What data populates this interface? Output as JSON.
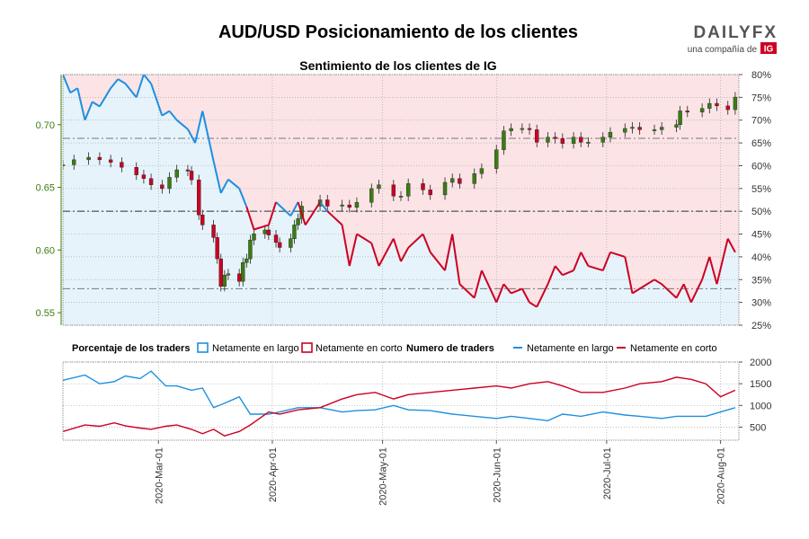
{
  "header": {
    "title": "AUD/USD Posicionamiento de los clientes",
    "logo_text": "DAILYFX",
    "logo_sub": "una compañía de",
    "logo_brand": "IG"
  },
  "colors": {
    "long": "#1e8fe0",
    "short": "#cc0022",
    "long_fill": "#e6f3fb",
    "short_fill": "#fbe3e6",
    "price_axis": "#3a7d12",
    "candle_up": "#3a7d12",
    "candle_down": "#cc0022"
  },
  "legend": {
    "pct_title": "Porcentaje de los traders",
    "pct_long": "Netamente en largo",
    "pct_short": "Netamente en corto",
    "num_title": "Numero de traders",
    "num_long": "Netamente en largo",
    "num_short": "Netamente en corto"
  },
  "chart_data": [
    {
      "type": "line",
      "title": "Sentimiento de los clientes de IG",
      "series_kind": "candlestick price with net-long percentage overlay",
      "price_axis": {
        "ticks": [
          "0.70",
          "0.65",
          "0.60",
          "0.55"
        ],
        "ylim": [
          0.54,
          0.74
        ]
      },
      "pct_axis": {
        "ticks": [
          "80%",
          "75%",
          "70%",
          "65%",
          "60%",
          "55%",
          "50%",
          "45%",
          "40%",
          "35%",
          "30%",
          "25%"
        ],
        "ylim": [
          25,
          80
        ]
      },
      "reference_lines_pct": [
        50,
        66,
        33
      ],
      "reference_line_price": 0.631,
      "x_ticks": [
        "2020-Mar-01",
        "2020-Apr-01",
        "2020-May-01",
        "2020-Jun-01",
        "2020-Jul-01",
        "2020-Aug-01"
      ],
      "x_range": [
        "2020-02-04",
        "2020-08-06"
      ],
      "price": [
        {
          "x": "2020-02-04",
          "y": 0.668
        },
        {
          "x": "2020-02-07",
          "y": 0.672
        },
        {
          "x": "2020-02-11",
          "y": 0.674
        },
        {
          "x": "2020-02-14",
          "y": 0.672
        },
        {
          "x": "2020-02-17",
          "y": 0.67
        },
        {
          "x": "2020-02-20",
          "y": 0.666
        },
        {
          "x": "2020-02-24",
          "y": 0.66
        },
        {
          "x": "2020-02-26",
          "y": 0.657
        },
        {
          "x": "2020-02-28",
          "y": 0.652
        },
        {
          "x": "2020-03-02",
          "y": 0.649
        },
        {
          "x": "2020-03-04",
          "y": 0.658
        },
        {
          "x": "2020-03-06",
          "y": 0.664
        },
        {
          "x": "2020-03-09",
          "y": 0.663
        },
        {
          "x": "2020-03-10",
          "y": 0.656
        },
        {
          "x": "2020-03-12",
          "y": 0.628
        },
        {
          "x": "2020-03-13",
          "y": 0.62
        },
        {
          "x": "2020-03-16",
          "y": 0.61
        },
        {
          "x": "2020-03-17",
          "y": 0.593
        },
        {
          "x": "2020-03-18",
          "y": 0.571
        },
        {
          "x": "2020-03-19",
          "y": 0.58
        },
        {
          "x": "2020-03-20",
          "y": 0.581
        },
        {
          "x": "2020-03-23",
          "y": 0.575
        },
        {
          "x": "2020-03-24",
          "y": 0.59
        },
        {
          "x": "2020-03-25",
          "y": 0.593
        },
        {
          "x": "2020-03-26",
          "y": 0.608
        },
        {
          "x": "2020-03-27",
          "y": 0.613
        },
        {
          "x": "2020-03-30",
          "y": 0.616
        },
        {
          "x": "2020-03-31",
          "y": 0.612
        },
        {
          "x": "2020-04-02",
          "y": 0.606
        },
        {
          "x": "2020-04-03",
          "y": 0.602
        },
        {
          "x": "2020-04-06",
          "y": 0.609
        },
        {
          "x": "2020-04-07",
          "y": 0.62
        },
        {
          "x": "2020-04-08",
          "y": 0.625
        },
        {
          "x": "2020-04-09",
          "y": 0.635
        },
        {
          "x": "2020-04-14",
          "y": 0.64
        },
        {
          "x": "2020-04-16",
          "y": 0.635
        },
        {
          "x": "2020-04-20",
          "y": 0.636
        },
        {
          "x": "2020-04-22",
          "y": 0.634
        },
        {
          "x": "2020-04-24",
          "y": 0.638
        },
        {
          "x": "2020-04-28",
          "y": 0.649
        },
        {
          "x": "2020-04-30",
          "y": 0.652
        },
        {
          "x": "2020-05-04",
          "y": 0.643
        },
        {
          "x": "2020-05-06",
          "y": 0.643
        },
        {
          "x": "2020-05-08",
          "y": 0.653
        },
        {
          "x": "2020-05-12",
          "y": 0.648
        },
        {
          "x": "2020-05-14",
          "y": 0.644
        },
        {
          "x": "2020-05-18",
          "y": 0.654
        },
        {
          "x": "2020-05-20",
          "y": 0.657
        },
        {
          "x": "2020-05-22",
          "y": 0.653
        },
        {
          "x": "2020-05-26",
          "y": 0.661
        },
        {
          "x": "2020-05-28",
          "y": 0.665
        },
        {
          "x": "2020-06-01",
          "y": 0.68
        },
        {
          "x": "2020-06-03",
          "y": 0.695
        },
        {
          "x": "2020-06-05",
          "y": 0.697
        },
        {
          "x": "2020-06-08",
          "y": 0.697
        },
        {
          "x": "2020-06-10",
          "y": 0.696
        },
        {
          "x": "2020-06-12",
          "y": 0.686
        },
        {
          "x": "2020-06-15",
          "y": 0.69
        },
        {
          "x": "2020-06-17",
          "y": 0.689
        },
        {
          "x": "2020-06-19",
          "y": 0.685
        },
        {
          "x": "2020-06-22",
          "y": 0.69
        },
        {
          "x": "2020-06-24",
          "y": 0.686
        },
        {
          "x": "2020-06-26",
          "y": 0.686
        },
        {
          "x": "2020-06-30",
          "y": 0.69
        },
        {
          "x": "2020-07-02",
          "y": 0.694
        },
        {
          "x": "2020-07-06",
          "y": 0.697
        },
        {
          "x": "2020-07-08",
          "y": 0.698
        },
        {
          "x": "2020-07-10",
          "y": 0.696
        },
        {
          "x": "2020-07-14",
          "y": 0.696
        },
        {
          "x": "2020-07-16",
          "y": 0.698
        },
        {
          "x": "2020-07-20",
          "y": 0.7
        },
        {
          "x": "2020-07-21",
          "y": 0.711
        },
        {
          "x": "2020-07-23",
          "y": 0.71
        },
        {
          "x": "2020-07-27",
          "y": 0.713
        },
        {
          "x": "2020-07-29",
          "y": 0.717
        },
        {
          "x": "2020-07-31",
          "y": 0.715
        },
        {
          "x": "2020-08-03",
          "y": 0.712
        },
        {
          "x": "2020-08-05",
          "y": 0.722
        }
      ],
      "net_long_pct": [
        {
          "x": "2020-02-04",
          "y": 80
        },
        {
          "x": "2020-02-06",
          "y": 76
        },
        {
          "x": "2020-02-08",
          "y": 77
        },
        {
          "x": "2020-02-10",
          "y": 70
        },
        {
          "x": "2020-02-12",
          "y": 74
        },
        {
          "x": "2020-02-14",
          "y": 73
        },
        {
          "x": "2020-02-17",
          "y": 77
        },
        {
          "x": "2020-02-19",
          "y": 79
        },
        {
          "x": "2020-02-21",
          "y": 78
        },
        {
          "x": "2020-02-24",
          "y": 75
        },
        {
          "x": "2020-02-26",
          "y": 80
        },
        {
          "x": "2020-02-28",
          "y": 78
        },
        {
          "x": "2020-03-02",
          "y": 71
        },
        {
          "x": "2020-03-04",
          "y": 72
        },
        {
          "x": "2020-03-06",
          "y": 70
        },
        {
          "x": "2020-03-09",
          "y": 68
        },
        {
          "x": "2020-03-11",
          "y": 65
        },
        {
          "x": "2020-03-13",
          "y": 72
        },
        {
          "x": "2020-03-16",
          "y": 61
        },
        {
          "x": "2020-03-18",
          "y": 54
        },
        {
          "x": "2020-03-20",
          "y": 57
        },
        {
          "x": "2020-03-23",
          "y": 55
        },
        {
          "x": "2020-03-25",
          "y": 51
        },
        {
          "x": "2020-03-27",
          "y": 46
        },
        {
          "x": "2020-03-31",
          "y": 47
        },
        {
          "x": "2020-04-02",
          "y": 52
        },
        {
          "x": "2020-04-06",
          "y": 49
        },
        {
          "x": "2020-04-08",
          "y": 52
        },
        {
          "x": "2020-04-10",
          "y": 47
        },
        {
          "x": "2020-04-14",
          "y": 52
        },
        {
          "x": "2020-04-16",
          "y": 50
        },
        {
          "x": "2020-04-20",
          "y": 47
        },
        {
          "x": "2020-04-22",
          "y": 38
        },
        {
          "x": "2020-04-24",
          "y": 45
        },
        {
          "x": "2020-04-28",
          "y": 43
        },
        {
          "x": "2020-04-30",
          "y": 38
        },
        {
          "x": "2020-05-04",
          "y": 44
        },
        {
          "x": "2020-05-06",
          "y": 39
        },
        {
          "x": "2020-05-08",
          "y": 42
        },
        {
          "x": "2020-05-12",
          "y": 45
        },
        {
          "x": "2020-05-14",
          "y": 41
        },
        {
          "x": "2020-05-18",
          "y": 37
        },
        {
          "x": "2020-05-20",
          "y": 45
        },
        {
          "x": "2020-05-22",
          "y": 34
        },
        {
          "x": "2020-05-26",
          "y": 31
        },
        {
          "x": "2020-05-28",
          "y": 37
        },
        {
          "x": "2020-06-01",
          "y": 30
        },
        {
          "x": "2020-06-03",
          "y": 34
        },
        {
          "x": "2020-06-05",
          "y": 32
        },
        {
          "x": "2020-06-08",
          "y": 33
        },
        {
          "x": "2020-06-10",
          "y": 30
        },
        {
          "x": "2020-06-12",
          "y": 29
        },
        {
          "x": "2020-06-15",
          "y": 34
        },
        {
          "x": "2020-06-17",
          "y": 38
        },
        {
          "x": "2020-06-19",
          "y": 36
        },
        {
          "x": "2020-06-22",
          "y": 37
        },
        {
          "x": "2020-06-24",
          "y": 41
        },
        {
          "x": "2020-06-26",
          "y": 38
        },
        {
          "x": "2020-06-30",
          "y": 37
        },
        {
          "x": "2020-07-02",
          "y": 41
        },
        {
          "x": "2020-07-06",
          "y": 40
        },
        {
          "x": "2020-07-08",
          "y": 32
        },
        {
          "x": "2020-07-10",
          "y": 33
        },
        {
          "x": "2020-07-14",
          "y": 35
        },
        {
          "x": "2020-07-16",
          "y": 34
        },
        {
          "x": "2020-07-20",
          "y": 31
        },
        {
          "x": "2020-07-22",
          "y": 34
        },
        {
          "x": "2020-07-24",
          "y": 30
        },
        {
          "x": "2020-07-27",
          "y": 35
        },
        {
          "x": "2020-07-29",
          "y": 40
        },
        {
          "x": "2020-07-31",
          "y": 34
        },
        {
          "x": "2020-08-03",
          "y": 44
        },
        {
          "x": "2020-08-05",
          "y": 41
        }
      ]
    },
    {
      "type": "line",
      "series_kind": "number of traders",
      "y_ticks": [
        "2000",
        "1500",
        "1000",
        "500"
      ],
      "ylim": [
        200,
        2000
      ],
      "series": [
        {
          "name": "Netamente en largo",
          "color": "#1e8fe0",
          "points": [
            {
              "x": "2020-02-04",
              "y": 1580
            },
            {
              "x": "2020-02-10",
              "y": 1700
            },
            {
              "x": "2020-02-14",
              "y": 1500
            },
            {
              "x": "2020-02-18",
              "y": 1550
            },
            {
              "x": "2020-02-21",
              "y": 1680
            },
            {
              "x": "2020-02-25",
              "y": 1620
            },
            {
              "x": "2020-02-28",
              "y": 1790
            },
            {
              "x": "2020-03-03",
              "y": 1450
            },
            {
              "x": "2020-03-06",
              "y": 1450
            },
            {
              "x": "2020-03-10",
              "y": 1350
            },
            {
              "x": "2020-03-13",
              "y": 1400
            },
            {
              "x": "2020-03-16",
              "y": 950
            },
            {
              "x": "2020-03-19",
              "y": 1050
            },
            {
              "x": "2020-03-23",
              "y": 1200
            },
            {
              "x": "2020-03-26",
              "y": 800
            },
            {
              "x": "2020-03-31",
              "y": 800
            },
            {
              "x": "2020-04-03",
              "y": 850
            },
            {
              "x": "2020-04-08",
              "y": 950
            },
            {
              "x": "2020-04-14",
              "y": 950
            },
            {
              "x": "2020-04-20",
              "y": 850
            },
            {
              "x": "2020-04-24",
              "y": 880
            },
            {
              "x": "2020-04-29",
              "y": 900
            },
            {
              "x": "2020-05-04",
              "y": 1000
            },
            {
              "x": "2020-05-08",
              "y": 900
            },
            {
              "x": "2020-05-14",
              "y": 880
            },
            {
              "x": "2020-05-20",
              "y": 800
            },
            {
              "x": "2020-05-26",
              "y": 750
            },
            {
              "x": "2020-06-01",
              "y": 700
            },
            {
              "x": "2020-06-05",
              "y": 750
            },
            {
              "x": "2020-06-10",
              "y": 700
            },
            {
              "x": "2020-06-15",
              "y": 650
            },
            {
              "x": "2020-06-19",
              "y": 800
            },
            {
              "x": "2020-06-24",
              "y": 750
            },
            {
              "x": "2020-06-30",
              "y": 850
            },
            {
              "x": "2020-07-06",
              "y": 780
            },
            {
              "x": "2020-07-10",
              "y": 750
            },
            {
              "x": "2020-07-16",
              "y": 700
            },
            {
              "x": "2020-07-20",
              "y": 750
            },
            {
              "x": "2020-07-24",
              "y": 750
            },
            {
              "x": "2020-07-28",
              "y": 750
            },
            {
              "x": "2020-08-01",
              "y": 850
            },
            {
              "x": "2020-08-05",
              "y": 950
            }
          ]
        },
        {
          "name": "Netamente en corto",
          "color": "#cc0022",
          "points": [
            {
              "x": "2020-02-04",
              "y": 400
            },
            {
              "x": "2020-02-10",
              "y": 550
            },
            {
              "x": "2020-02-14",
              "y": 520
            },
            {
              "x": "2020-02-18",
              "y": 600
            },
            {
              "x": "2020-02-21",
              "y": 530
            },
            {
              "x": "2020-02-25",
              "y": 480
            },
            {
              "x": "2020-02-28",
              "y": 450
            },
            {
              "x": "2020-03-03",
              "y": 520
            },
            {
              "x": "2020-03-06",
              "y": 550
            },
            {
              "x": "2020-03-10",
              "y": 450
            },
            {
              "x": "2020-03-13",
              "y": 350
            },
            {
              "x": "2020-03-16",
              "y": 450
            },
            {
              "x": "2020-03-19",
              "y": 300
            },
            {
              "x": "2020-03-23",
              "y": 400
            },
            {
              "x": "2020-03-26",
              "y": 550
            },
            {
              "x": "2020-03-31",
              "y": 850
            },
            {
              "x": "2020-04-03",
              "y": 800
            },
            {
              "x": "2020-04-08",
              "y": 900
            },
            {
              "x": "2020-04-14",
              "y": 950
            },
            {
              "x": "2020-04-20",
              "y": 1150
            },
            {
              "x": "2020-04-24",
              "y": 1250
            },
            {
              "x": "2020-04-29",
              "y": 1300
            },
            {
              "x": "2020-05-04",
              "y": 1150
            },
            {
              "x": "2020-05-08",
              "y": 1250
            },
            {
              "x": "2020-05-14",
              "y": 1300
            },
            {
              "x": "2020-05-20",
              "y": 1350
            },
            {
              "x": "2020-05-26",
              "y": 1400
            },
            {
              "x": "2020-06-01",
              "y": 1450
            },
            {
              "x": "2020-06-05",
              "y": 1400
            },
            {
              "x": "2020-06-10",
              "y": 1500
            },
            {
              "x": "2020-06-15",
              "y": 1550
            },
            {
              "x": "2020-06-19",
              "y": 1450
            },
            {
              "x": "2020-06-24",
              "y": 1300
            },
            {
              "x": "2020-06-30",
              "y": 1300
            },
            {
              "x": "2020-07-06",
              "y": 1400
            },
            {
              "x": "2020-07-10",
              "y": 1500
            },
            {
              "x": "2020-07-16",
              "y": 1550
            },
            {
              "x": "2020-07-20",
              "y": 1650
            },
            {
              "x": "2020-07-24",
              "y": 1600
            },
            {
              "x": "2020-07-28",
              "y": 1500
            },
            {
              "x": "2020-08-01",
              "y": 1200
            },
            {
              "x": "2020-08-05",
              "y": 1350
            }
          ]
        }
      ]
    }
  ]
}
